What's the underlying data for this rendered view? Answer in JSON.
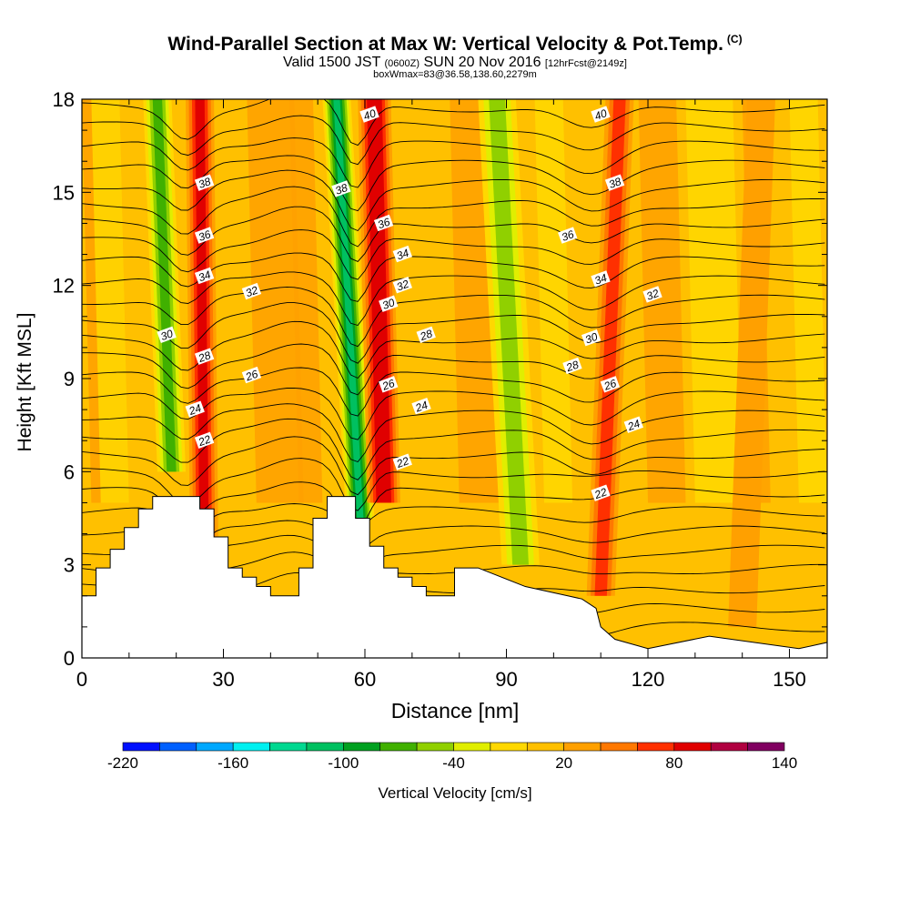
{
  "header": {
    "title": "Wind-Parallel Section at Max W: Vertical Velocity & Pot.Temp.",
    "copyright": "(C)",
    "valid_prefix": "Valid 1500 JST",
    "valid_utc": "(0600Z)",
    "valid_date": "SUN 20 Nov 2016",
    "forecast": "[12hrFcst@2149z]",
    "box_info": "boxWmax=83@36.58,138.60,2279m"
  },
  "colorbar": {
    "label": "Vertical Velocity [cm/s]",
    "tick_labels": [
      "-220",
      "-160",
      "-100",
      "-40",
      "20",
      "80",
      "140"
    ],
    "levels": [
      -220,
      -200,
      -180,
      -160,
      -140,
      -120,
      -100,
      -80,
      -60,
      -40,
      -20,
      0,
      20,
      40,
      60,
      80,
      100,
      120,
      140
    ],
    "colors": [
      "#0010ff",
      "#0060ff",
      "#00a8ff",
      "#00f0f0",
      "#00d890",
      "#00c060",
      "#00a020",
      "#40b000",
      "#90d000",
      "#e0ee00",
      "#ffd800",
      "#ffc000",
      "#ffa000",
      "#ff7800",
      "#ff3000",
      "#e00000",
      "#b00040",
      "#800060"
    ]
  },
  "chart_data": {
    "type": "heatmap",
    "title": "Wind-Parallel Section at Max W: Vertical Velocity & Pot.Temp.",
    "xlabel": "Distance [nm]",
    "ylabel": "Height [Kft MSL]",
    "xlim": [
      0,
      158
    ],
    "ylim": [
      0,
      18
    ],
    "x_ticks": [
      0,
      30,
      60,
      90,
      120,
      150
    ],
    "y_ticks": [
      0,
      3,
      6,
      9,
      12,
      15,
      18
    ],
    "colorbar_range": [
      -220,
      140
    ],
    "terrain": {
      "x": [
        0,
        3,
        3,
        6,
        6,
        9,
        9,
        12,
        12,
        15,
        15,
        19,
        19,
        25,
        25,
        28,
        28,
        31,
        31,
        34,
        34,
        37,
        37,
        40,
        40,
        46,
        46,
        49,
        49,
        52,
        52,
        58,
        58,
        61,
        61,
        64,
        64,
        67,
        67,
        70,
        70,
        73,
        73,
        79,
        79,
        84,
        84,
        94,
        94,
        103,
        103,
        106,
        106,
        109,
        109,
        110,
        110,
        113,
        113,
        120,
        120,
        133,
        133,
        152,
        152,
        158
      ],
      "y": [
        2,
        2,
        2.9,
        2.9,
        3.5,
        3.5,
        4.2,
        4.2,
        4.8,
        4.8,
        5.2,
        5.2,
        5.2,
        5.2,
        4.8,
        4.8,
        3.9,
        3.9,
        2.9,
        2.9,
        2.6,
        2.6,
        2.3,
        2.3,
        2,
        2,
        2.9,
        2.9,
        4.5,
        4.5,
        5.2,
        5.2,
        4.5,
        4.5,
        3.6,
        3.6,
        2.9,
        2.9,
        2.6,
        2.6,
        2.3,
        2.3,
        2,
        2,
        2.9,
        2.9,
        2.9,
        2.3,
        2.3,
        2,
        2,
        1.9,
        1.9,
        1.6,
        1.6,
        1,
        1,
        0.6,
        0.6,
        0.3,
        0.3,
        0.7,
        0.7,
        0.3,
        0.3,
        0.5
      ]
    },
    "updraft_bands": [
      {
        "x_bottom": 26,
        "x_top": 25,
        "y_bottom": 2.5,
        "w_max": 80,
        "width_nm": 3
      },
      {
        "x_bottom": 64,
        "x_top": 62,
        "y_bottom": 5,
        "w_max": 83,
        "width_nm": 3.5
      },
      {
        "x_bottom": 110,
        "x_top": 114,
        "y_bottom": 2,
        "w_max": 60,
        "width_nm": 3
      },
      {
        "x_bottom": 140,
        "x_top": 144,
        "y_bottom": 1,
        "w_max": 30,
        "width_nm": 3
      }
    ],
    "downdraft_bands": [
      {
        "x_bottom": 19,
        "x_top": 16,
        "y_bottom": 6,
        "w_min": -80,
        "width_nm": 3
      },
      {
        "x_bottom": 59,
        "x_top": 54,
        "y_bottom": 4.5,
        "w_min": -110,
        "width_nm": 3
      },
      {
        "x_bottom": 93,
        "x_top": 88,
        "y_bottom": 3,
        "w_min": -50,
        "width_nm": 4
      }
    ],
    "contour_labels": [
      {
        "text": "40",
        "x": 61,
        "y": 17.5
      },
      {
        "text": "40",
        "x": 110,
        "y": 17.5
      },
      {
        "text": "38",
        "x": 26,
        "y": 15.3
      },
      {
        "text": "38",
        "x": 55,
        "y": 15.1
      },
      {
        "text": "38",
        "x": 113,
        "y": 15.3
      },
      {
        "text": "36",
        "x": 26,
        "y": 13.6
      },
      {
        "text": "36",
        "x": 64,
        "y": 14.0
      },
      {
        "text": "36",
        "x": 103,
        "y": 13.6
      },
      {
        "text": "34",
        "x": 26,
        "y": 12.3
      },
      {
        "text": "34",
        "x": 68,
        "y": 13.0
      },
      {
        "text": "34",
        "x": 110,
        "y": 12.2
      },
      {
        "text": "32",
        "x": 36,
        "y": 11.8
      },
      {
        "text": "32",
        "x": 68,
        "y": 12.0
      },
      {
        "text": "32",
        "x": 121,
        "y": 11.7
      },
      {
        "text": "30",
        "x": 18,
        "y": 10.4
      },
      {
        "text": "30",
        "x": 65,
        "y": 11.4
      },
      {
        "text": "30",
        "x": 108,
        "y": 10.3
      },
      {
        "text": "28",
        "x": 26,
        "y": 9.7
      },
      {
        "text": "28",
        "x": 73,
        "y": 10.4
      },
      {
        "text": "28",
        "x": 104,
        "y": 9.4
      },
      {
        "text": "26",
        "x": 36,
        "y": 9.1
      },
      {
        "text": "26",
        "x": 65,
        "y": 8.8
      },
      {
        "text": "26",
        "x": 112,
        "y": 8.8
      },
      {
        "text": "24",
        "x": 24,
        "y": 8.0
      },
      {
        "text": "24",
        "x": 72,
        "y": 8.1
      },
      {
        "text": "24",
        "x": 117,
        "y": 7.5
      },
      {
        "text": "22",
        "x": 26,
        "y": 7.0
      },
      {
        "text": "22",
        "x": 68,
        "y": 6.3
      },
      {
        "text": "22",
        "x": 110,
        "y": 5.3
      }
    ]
  }
}
